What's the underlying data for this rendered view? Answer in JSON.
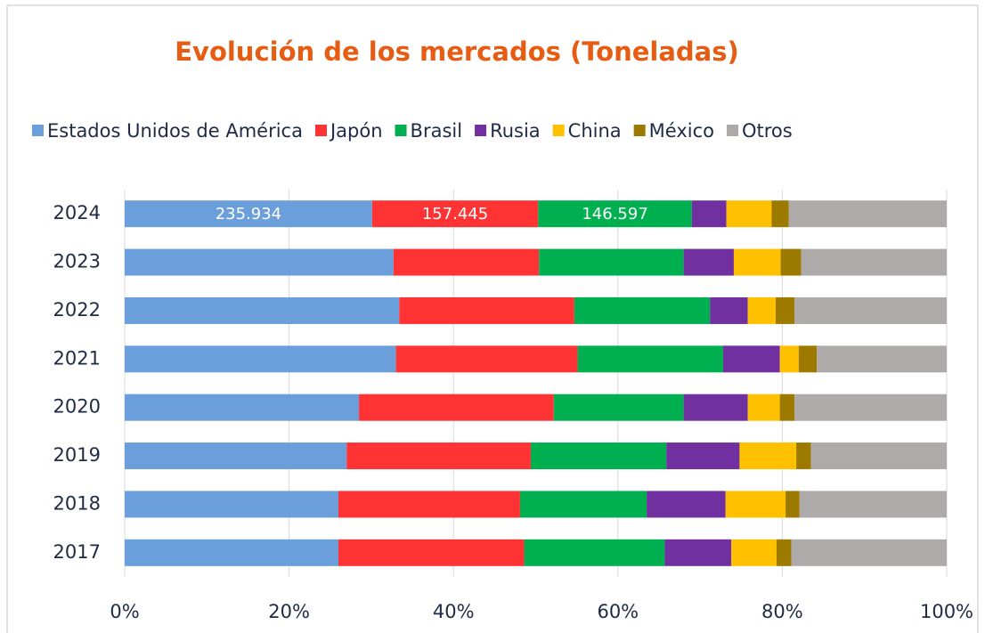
{
  "chart_data": {
    "type": "stacked_bar_horizontal_percent",
    "title": "Evolución de los mercados (Toneladas)",
    "categories": [
      "2024",
      "2023",
      "2022",
      "2021",
      "2020",
      "2019",
      "2018",
      "2017"
    ],
    "series": [
      {
        "name": "Estados Unidos de América",
        "color": "#6a9fdc",
        "values": [
          30.1,
          32.7,
          33.4,
          33.0,
          28.5,
          27.0,
          26.0,
          26.0
        ]
      },
      {
        "name": "Japón",
        "color": "#ff3333",
        "values": [
          20.2,
          17.7,
          21.3,
          22.1,
          23.7,
          22.4,
          22.1,
          22.6
        ]
      },
      {
        "name": "Brasil",
        "color": "#00b050",
        "values": [
          18.7,
          17.6,
          16.5,
          17.7,
          15.8,
          16.5,
          15.4,
          17.1
        ]
      },
      {
        "name": "Rusia",
        "color": "#7030a0",
        "values": [
          4.2,
          6.1,
          4.6,
          6.9,
          7.8,
          8.9,
          9.6,
          8.1
        ]
      },
      {
        "name": "China",
        "color": "#ffc000",
        "values": [
          5.5,
          5.7,
          3.4,
          2.3,
          3.9,
          6.9,
          7.3,
          5.5
        ]
      },
      {
        "name": "México",
        "color": "#9c7a00",
        "values": [
          2.1,
          2.5,
          2.3,
          2.2,
          1.8,
          1.8,
          1.7,
          1.8
        ]
      },
      {
        "name": "Otros",
        "color": "#aeaaaa",
        "values": [
          19.2,
          17.7,
          18.5,
          15.8,
          18.5,
          16.5,
          17.9,
          18.9
        ]
      }
    ],
    "annotations": [
      "235.934",
      "157.445",
      "146.597"
    ],
    "xlim": [
      0,
      100
    ],
    "xticks": [
      {
        "value": 0,
        "label": "0%"
      },
      {
        "value": 20,
        "label": "20%"
      },
      {
        "value": 40,
        "label": "40%"
      },
      {
        "value": 60,
        "label": "60%"
      },
      {
        "value": 80,
        "label": "80%"
      },
      {
        "value": 100,
        "label": "100%"
      }
    ],
    "grid": true,
    "legend": "top"
  }
}
